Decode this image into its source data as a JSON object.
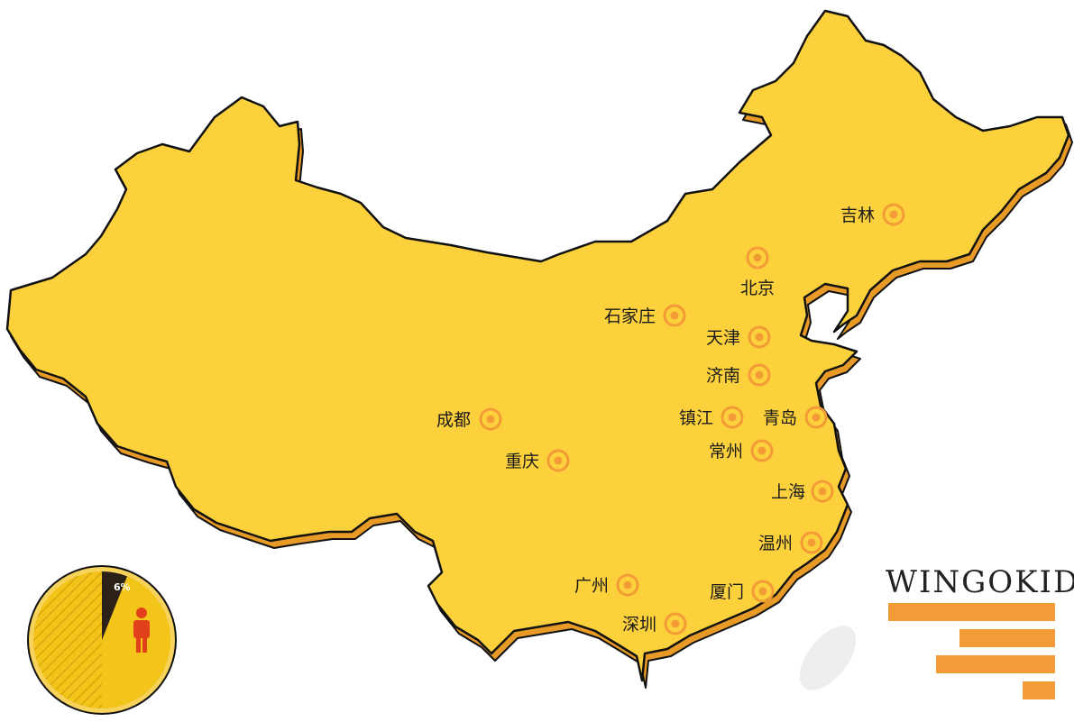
{
  "map": {
    "cities": [
      {
        "name": "吉林",
        "id": "jilin"
      },
      {
        "name": "北京",
        "id": "beijing"
      },
      {
        "name": "石家庄",
        "id": "shijiazhuang"
      },
      {
        "name": "天津",
        "id": "tianjin"
      },
      {
        "name": "济南",
        "id": "jinan"
      },
      {
        "name": "成都",
        "id": "chengdu"
      },
      {
        "name": "镇江",
        "id": "zhenjiang"
      },
      {
        "name": "青岛",
        "id": "qingdao"
      },
      {
        "name": "常州",
        "id": "changzhou"
      },
      {
        "name": "重庆",
        "id": "chongqing"
      },
      {
        "name": "上海",
        "id": "shanghai"
      },
      {
        "name": "温州",
        "id": "wenzhou"
      },
      {
        "name": "广州",
        "id": "guangzhou"
      },
      {
        "name": "厦门",
        "id": "xiamen"
      },
      {
        "name": "深圳",
        "id": "shenzhen"
      }
    ],
    "colors": {
      "land": "#fdd13c",
      "land_shadow": "#e89a27",
      "outline": "#111111",
      "marker": "#f39b36",
      "island": "#eeeeee"
    }
  },
  "pie": {
    "label": "6%",
    "percent": 6,
    "colors": {
      "slice": "#2b2117",
      "rest": "#f3c41a",
      "ring": "#f7d35c",
      "person": "#e2401a"
    },
    "icon": "person-icon"
  },
  "brand": {
    "text": "WINGOKID",
    "accent": "#f39b36"
  }
}
